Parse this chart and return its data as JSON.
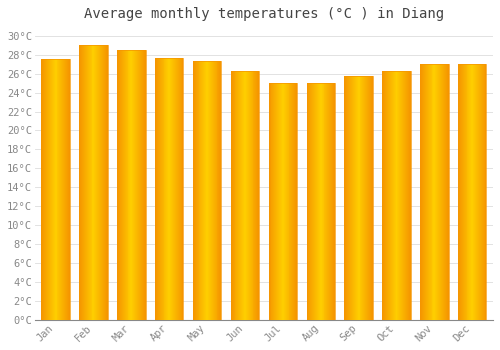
{
  "title": "Average monthly temperatures (°C ) in Diang",
  "months": [
    "Jan",
    "Feb",
    "Mar",
    "Apr",
    "May",
    "Jun",
    "Jul",
    "Aug",
    "Sep",
    "Oct",
    "Nov",
    "Dec"
  ],
  "values": [
    27.5,
    29.0,
    28.5,
    27.7,
    27.3,
    26.3,
    25.0,
    25.0,
    25.7,
    26.3,
    27.0,
    27.0
  ],
  "bar_color_center": "#FFD000",
  "bar_color_edge": "#F59500",
  "background_color": "#FFFFFF",
  "grid_color": "#DDDDDD",
  "tick_color": "#888888",
  "title_color": "#444444",
  "yticks": [
    0,
    2,
    4,
    6,
    8,
    10,
    12,
    14,
    16,
    18,
    20,
    22,
    24,
    26,
    28,
    30
  ],
  "ylim": [
    0,
    31
  ],
  "title_fontsize": 10,
  "tick_fontsize": 7.5,
  "font_family": "monospace",
  "bar_width": 0.75
}
